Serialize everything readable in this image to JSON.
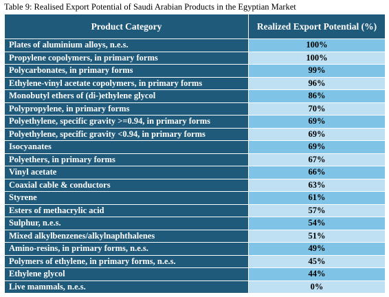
{
  "caption": "Table 9: Realised Export Potential of Saudi Arabian Products in the Egyptian Market",
  "headers": {
    "category": "Product Category",
    "potential": "Realized Export Potential (%)"
  },
  "rows": [
    {
      "category": "Plates of aluminium alloys, n.e.s.",
      "potential": "100%"
    },
    {
      "category": "Propylene copolymers, in primary forms",
      "potential": "100%"
    },
    {
      "category": "Polycarbonates, in primary forms",
      "potential": "99%"
    },
    {
      "category": "Ethylene-vinyl acetate copolymers, in primary forms",
      "potential": "96%"
    },
    {
      "category": "Monobutyl ethers of (di-)ethylene glycol",
      "potential": "86%"
    },
    {
      "category": "Polypropylene, in primary forms",
      "potential": "70%"
    },
    {
      "category": "Polyethylene, specific gravity >=0.94, in primary forms",
      "potential": "69%"
    },
    {
      "category": "Polyethylene, specific gravity <0.94, in primary forms",
      "potential": "69%"
    },
    {
      "category": "Isocyanates",
      "potential": "69%"
    },
    {
      "category": "Polyethers, in primary forms",
      "potential": "67%"
    },
    {
      "category": "Vinyl acetate",
      "potential": "66%"
    },
    {
      "category": "Coaxial cable & conductors",
      "potential": "63%"
    },
    {
      "category": "Styrene",
      "potential": "61%"
    },
    {
      "category": "Esters of methacrylic acid",
      "potential": "57%"
    },
    {
      "category": "Sulphur, n.e.s.",
      "potential": "54%"
    },
    {
      "category": "Mixed alkylbenzenes/alkylnaphthalenes",
      "potential": "51%"
    },
    {
      "category": "Amino-resins, in primary forms, n.e.s.",
      "potential": "49%"
    },
    {
      "category": "Polymers of ethylene, in primary forms, n.e.s.",
      "potential": "45%"
    },
    {
      "category": "Ethylene glycol",
      "potential": "44%"
    },
    {
      "category": "Live mammals, n.e.s.",
      "potential": "0%"
    }
  ]
}
